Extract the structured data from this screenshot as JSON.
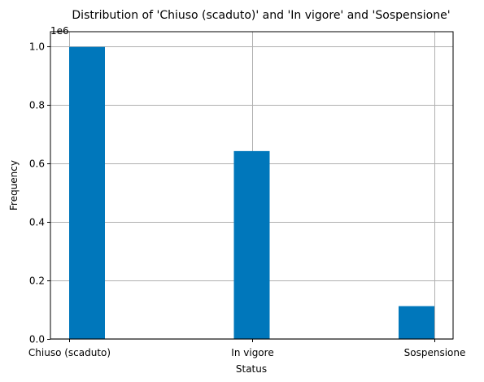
{
  "chart_data": {
    "type": "bar",
    "title": "Distribution of 'Chiuso (scaduto)' and 'In vigore' and 'Sospensione'",
    "xlabel": "Status",
    "ylabel": "Frequency",
    "y_offset_label": "1e6",
    "categories": [
      "Chiuso (scaduto)",
      "In vigore",
      "Sospensione"
    ],
    "values": [
      998000,
      642000,
      112000
    ],
    "ylim": [
      0,
      1050000
    ],
    "yticks": [
      0,
      200000,
      400000,
      600000,
      800000,
      1000000
    ],
    "ytick_labels": [
      "0.0",
      "0.2",
      "0.4",
      "0.6",
      "0.8",
      "1.0"
    ],
    "grid": true,
    "bar_color": "#0077bb"
  }
}
